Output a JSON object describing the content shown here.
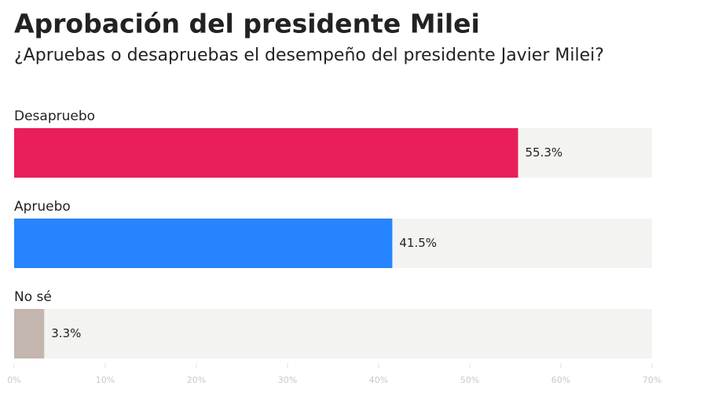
{
  "chart_data": {
    "type": "hbar",
    "title": "Aprobación del presidente Milei",
    "subtitle": "¿Apruebas o desapruebas el desempeño del presidente Javier Milei?",
    "categories": [
      "Desapruebo",
      "Apruebo",
      "No sé"
    ],
    "values": [
      55.3,
      41.5,
      3.3
    ],
    "value_labels": [
      "55.3%",
      "41.5%",
      "3.3%"
    ],
    "colors": [
      "#e91e5a",
      "#2684ff",
      "#c2b6ae"
    ],
    "xlim": [
      0,
      70
    ],
    "xticks": [
      {
        "value": 0,
        "label": "0%"
      },
      {
        "value": 10,
        "label": "10%"
      },
      {
        "value": 20,
        "label": "20%"
      },
      {
        "value": 30,
        "label": "30%"
      },
      {
        "value": 40,
        "label": "40%"
      },
      {
        "value": 50,
        "label": "50%"
      },
      {
        "value": 60,
        "label": "60%"
      },
      {
        "value": 70,
        "label": "70%"
      }
    ]
  }
}
